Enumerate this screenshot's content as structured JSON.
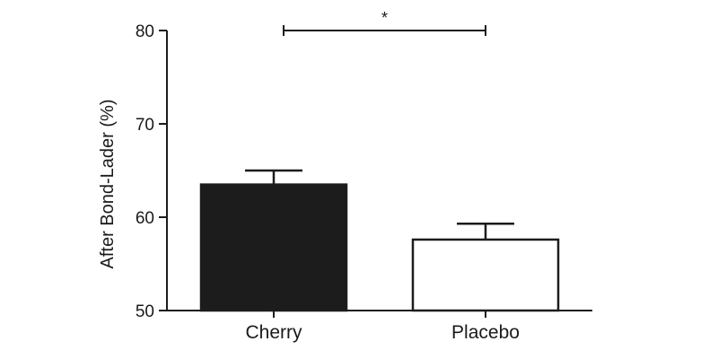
{
  "chart_data": {
    "type": "bar",
    "title": "",
    "xlabel": "",
    "ylabel": "After Bond-Lader (%)",
    "ylim": [
      50,
      80
    ],
    "yticks": [
      "50",
      "60",
      "70",
      "80"
    ],
    "categories": [
      "Cherry",
      "Placebo"
    ],
    "values": [
      63.5,
      57.6
    ],
    "error_upper": [
      65.0,
      59.3
    ],
    "bar_fills": [
      "#1c1c1c",
      "#ffffff"
    ],
    "bar_stroke": "#1c1c1c",
    "significance": {
      "between": [
        "Cherry",
        "Placebo"
      ],
      "label": "*"
    },
    "grid": false,
    "legend": "none"
  }
}
